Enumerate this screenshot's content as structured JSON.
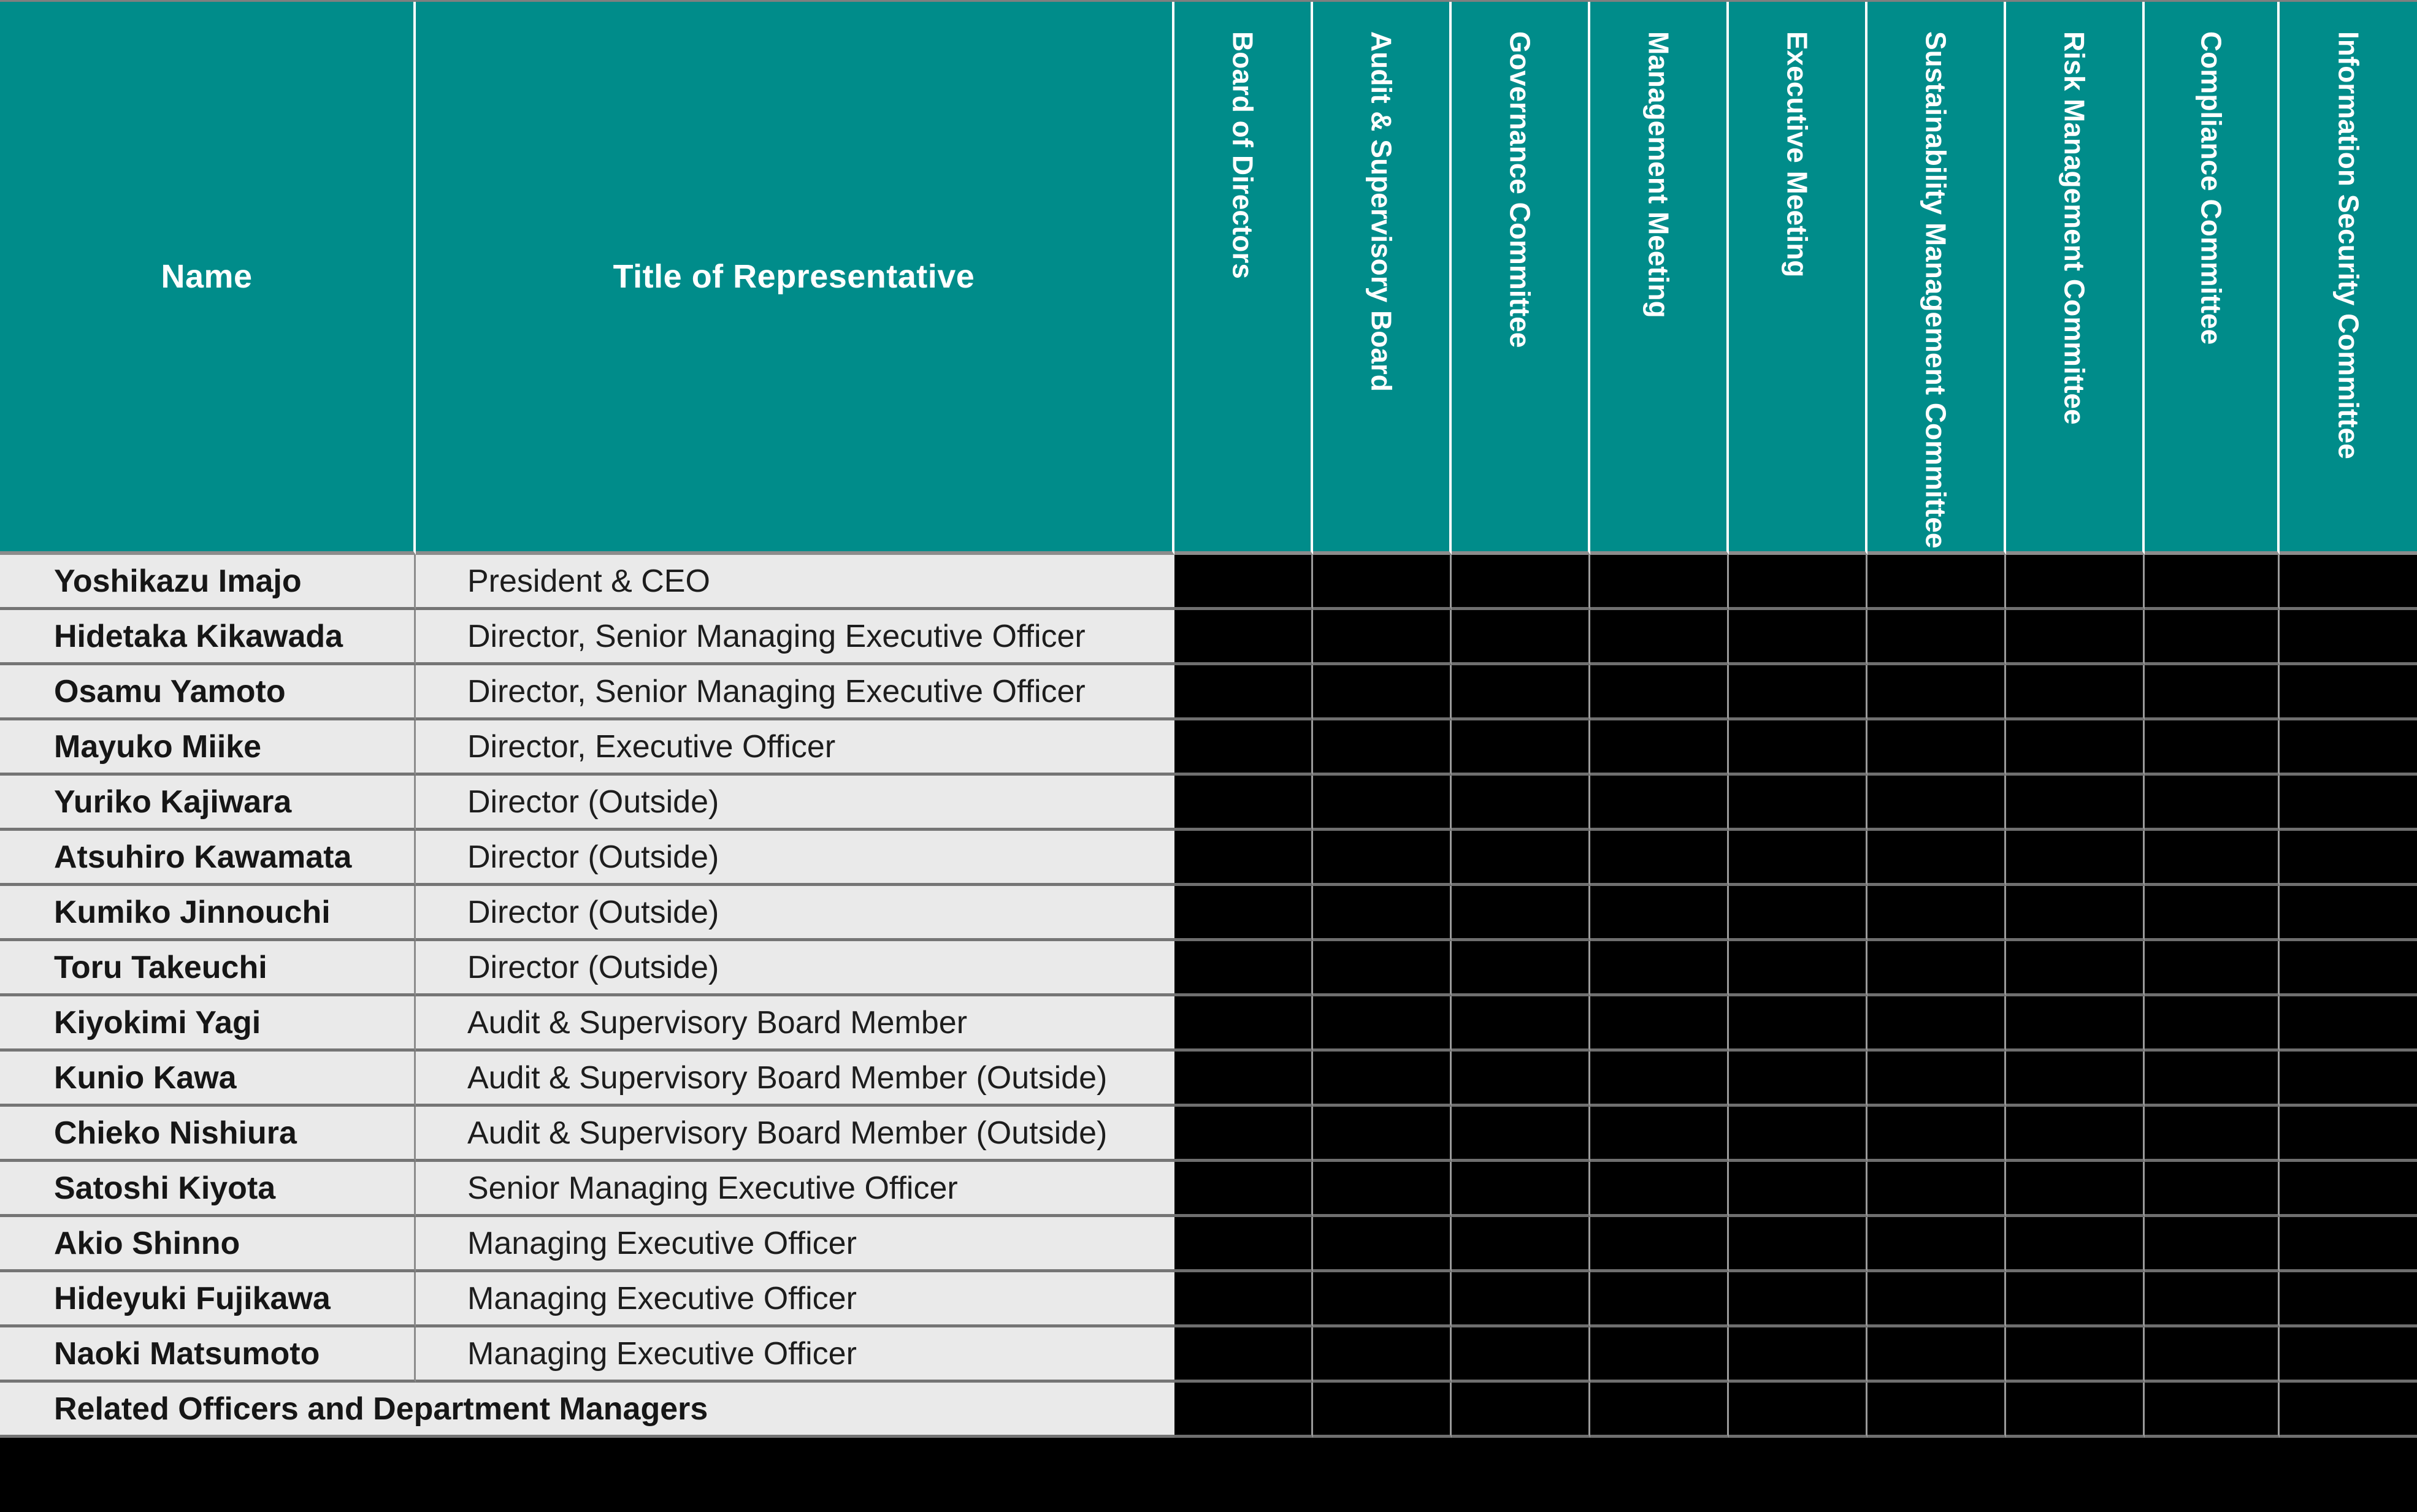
{
  "table": {
    "columns": {
      "name_header": "Name",
      "title_header": "Title of Representative",
      "committees": [
        "Board of Directors",
        "Audit & Supervisory Board",
        "Governance Committee",
        "Management Meeting",
        "Executive Meeting",
        "Sustainability Management Committee",
        "Risk Management Committee",
        "Compliance Committee",
        "Information Security Committee"
      ]
    },
    "rows": [
      {
        "name": "Yoshikazu Imajo",
        "title": "President & CEO"
      },
      {
        "name": "Hidetaka Kikawada",
        "title": "Director, Senior Managing Executive Officer"
      },
      {
        "name": "Osamu Yamoto",
        "title": "Director, Senior Managing Executive Officer"
      },
      {
        "name": "Mayuko Miike",
        "title": "Director, Executive Officer"
      },
      {
        "name": "Yuriko Kajiwara",
        "title": "Director (Outside)"
      },
      {
        "name": "Atsuhiro Kawamata",
        "title": "Director (Outside)"
      },
      {
        "name": "Kumiko Jinnouchi",
        "title": "Director (Outside)"
      },
      {
        "name": "Toru Takeuchi",
        "title": "Director (Outside)"
      },
      {
        "name": "Kiyokimi Yagi",
        "title": "Audit & Supervisory Board Member"
      },
      {
        "name": "Kunio Kawa",
        "title": "Audit & Supervisory Board Member (Outside)"
      },
      {
        "name": "Chieko Nishiura",
        "title": "Audit & Supervisory Board Member (Outside)"
      },
      {
        "name": "Satoshi Kiyota",
        "title": "Senior Managing Executive Officer"
      },
      {
        "name": "Akio Shinno",
        "title": "Managing Executive Officer"
      },
      {
        "name": "Hideyuki Fujikawa",
        "title": "Managing Executive Officer"
      },
      {
        "name": "Naoki Matsumoto",
        "title": "Managing Executive Officer"
      }
    ],
    "footer_row": {
      "label": "Related Officers and Department Managers"
    }
  },
  "colors": {
    "header_bg": "#008C8A",
    "header_text": "#FFFFFF",
    "row_bg": "#EAEAEA",
    "row_text": "#161616",
    "committee_cell_bg": "#000000",
    "grid_line_white": "#FFFFFF",
    "grid_line_gray": "#8C8C8C",
    "row_separator": "#757575"
  }
}
